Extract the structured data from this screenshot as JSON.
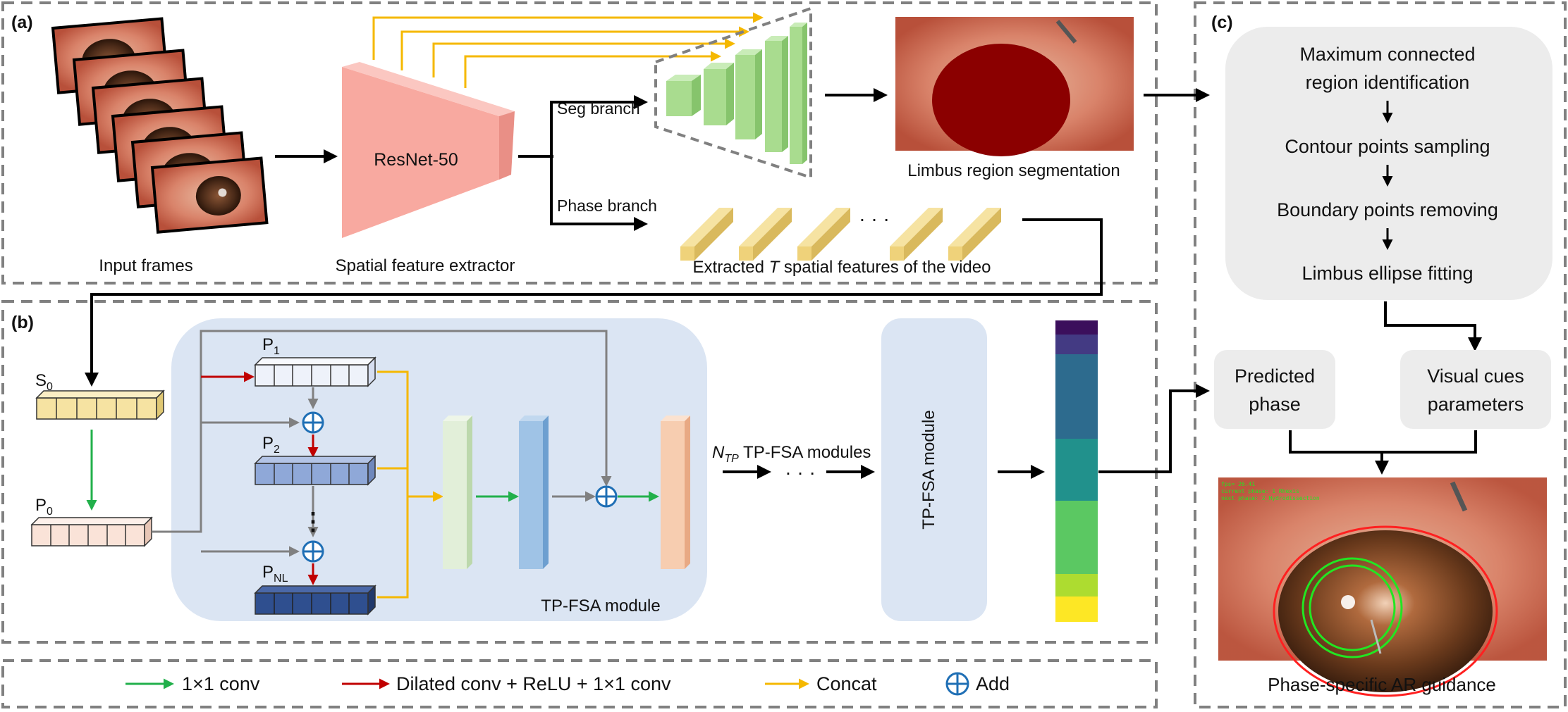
{
  "panels": {
    "a": "(a)",
    "b": "(b)",
    "c": "(c)"
  },
  "panel_a": {
    "input_frames": "Input frames",
    "resnet": "ResNet-50",
    "spatial_extractor": "Spatial feature extractor",
    "seg_branch": "Seg branch",
    "phase_branch": "Phase branch",
    "limbus_seg": "Limbus region segmentation",
    "dots": "· · ·",
    "extracted_prefix": "Extracted ",
    "extracted_t": "T",
    "extracted_suffix": " spatial features of the video"
  },
  "panel_b": {
    "s0_main": "S",
    "s0_sub": "0",
    "p0_main": "P",
    "p0_sub": "0",
    "p1_main": "P",
    "p1_sub": "1",
    "p2_main": "P",
    "p2_sub": "2",
    "pnl_main": "P",
    "pnl_sub": "NL",
    "vdots": "⋮",
    "module_label": "TP-FSA module",
    "ntp_main": "N",
    "ntp_sub": "TP",
    "ntp_suffix": " TP-FSA modules",
    "hdots": "· · ·",
    "module2_label": "TP-FSA module"
  },
  "panel_c": {
    "step1_l1": "Maximum connected",
    "step1_l2": "region identification",
    "step2": "Contour points sampling",
    "step3": "Boundary points removing",
    "step4": "Limbus ellipse fitting",
    "predicted_l1": "Predicted",
    "predicted_l2": "phase",
    "visual_l1": "Visual cues",
    "visual_l2": "parameters",
    "ar_caption": "Phase-specific AR guidance",
    "overlay_line1": "fps= 26.41",
    "overlay_line2": "current phase: 1_Rhexis",
    "overlay_line3": "next phase: 2_Hydrodissection"
  },
  "legend": {
    "conv1": "1×1 conv",
    "dilated": "Dilated conv + ReLU + 1×1 conv",
    "concat": "Concat",
    "add": "Add"
  },
  "colors": {
    "green_arrow": "#22b04b",
    "red_arrow": "#c00000",
    "yellow_arrow": "#f5b800",
    "blue_add": "#1f6fb5",
    "module_bg": "#dbe5f3",
    "resnet_pink": "#f8a9a0",
    "seg_green": "#a9dc8f",
    "feature_yellow": "#f6e3a2"
  },
  "phase_bar": {
    "segment_colors": [
      "#3b0f5c",
      "#433a83",
      "#2d6b8e",
      "#21918c",
      "#5bc862",
      "#addc30",
      "#fde725"
    ],
    "segment_fractions": [
      0.05,
      0.07,
      0.3,
      0.22,
      0.26,
      0.08,
      0.09
    ]
  }
}
